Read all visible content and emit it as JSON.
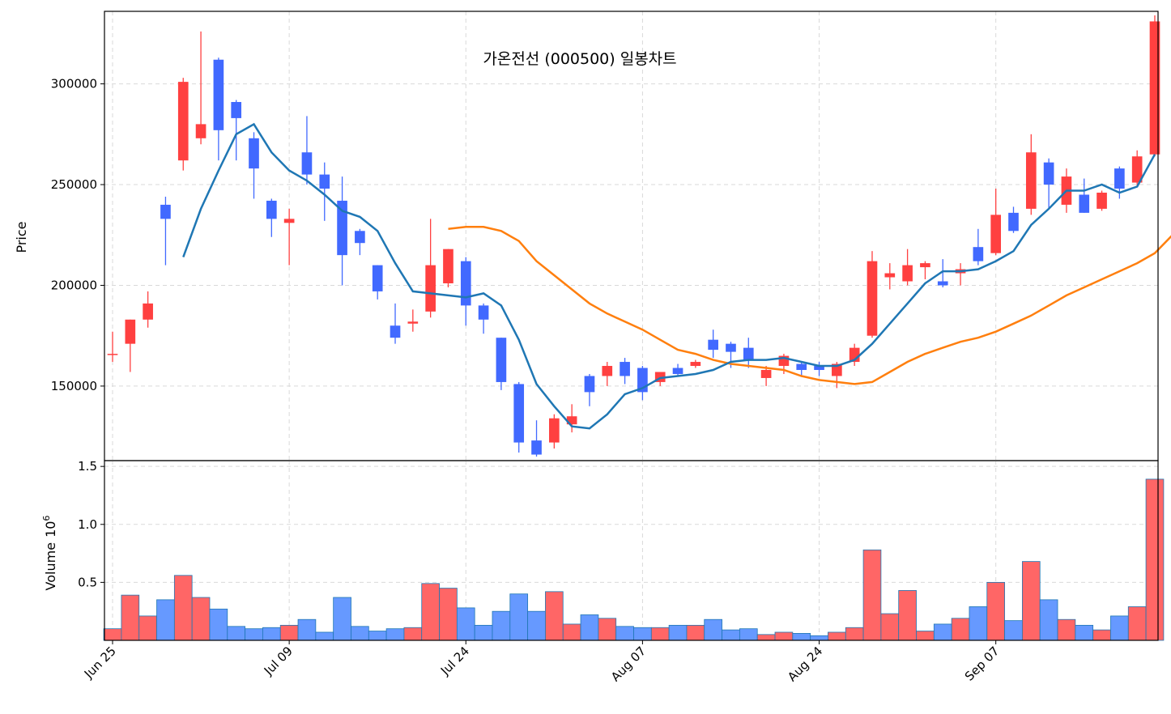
{
  "chart_data": [
    {
      "type": "candlestick",
      "title": "가온전선 (000500) 일봉차트",
      "ylabel": "Price",
      "ylim": [
        113000,
        336000
      ],
      "yticks": [
        150000,
        200000,
        250000,
        300000
      ],
      "xticks": [
        {
          "label": "Jun 25",
          "index": 0
        },
        {
          "label": "Jul 09",
          "index": 10
        },
        {
          "label": "Jul 24",
          "index": 20
        },
        {
          "label": "Aug 07",
          "index": 30
        },
        {
          "label": "Aug 24",
          "index": 40
        },
        {
          "label": "Sep 07",
          "index": 50
        }
      ],
      "grid": true,
      "colors": {
        "up": "#ff4040",
        "down": "#4169ff",
        "ma_short": "#1f77b4",
        "ma_long": "#ff7f0e"
      },
      "ohlc": [
        [
          166000,
          177000,
          162000,
          166000
        ],
        [
          171000,
          183000,
          157000,
          183000
        ],
        [
          183000,
          197000,
          179000,
          191000
        ],
        [
          240000,
          244000,
          210000,
          233000
        ],
        [
          262000,
          303000,
          257000,
          301000
        ],
        [
          273000,
          326000,
          270000,
          280000
        ],
        [
          312000,
          313000,
          262000,
          277000
        ],
        [
          291000,
          292000,
          262000,
          283000
        ],
        [
          273000,
          276000,
          243000,
          258000
        ],
        [
          242000,
          243000,
          224000,
          233000
        ],
        [
          231000,
          238000,
          210000,
          233000
        ],
        [
          266000,
          284000,
          250000,
          255000
        ],
        [
          255000,
          261000,
          232000,
          248000
        ],
        [
          242000,
          254000,
          200000,
          215000
        ],
        [
          227000,
          228000,
          215000,
          221000
        ],
        [
          210000,
          210000,
          193000,
          197000
        ],
        [
          180000,
          191000,
          171000,
          174000
        ],
        [
          181000,
          188000,
          177000,
          182000
        ],
        [
          187000,
          233000,
          184000,
          210000
        ],
        [
          201000,
          218000,
          199000,
          218000
        ],
        [
          212000,
          214000,
          180000,
          190000
        ],
        [
          190000,
          191000,
          176000,
          183000
        ],
        [
          174000,
          174000,
          148000,
          152000
        ],
        [
          151000,
          152000,
          117000,
          122000
        ],
        [
          123000,
          133000,
          115000,
          116000
        ],
        [
          122000,
          136000,
          119000,
          134000
        ],
        [
          131000,
          141000,
          127000,
          135000
        ],
        [
          155000,
          156000,
          140000,
          147000
        ],
        [
          155000,
          162000,
          150000,
          160000
        ],
        [
          162000,
          164000,
          151000,
          155000
        ],
        [
          159000,
          160000,
          143000,
          147000
        ],
        [
          152000,
          157000,
          150000,
          157000
        ],
        [
          159000,
          161000,
          155000,
          156000
        ],
        [
          160000,
          163000,
          159000,
          162000
        ],
        [
          173000,
          178000,
          164000,
          168000
        ],
        [
          171000,
          172000,
          159000,
          167000
        ],
        [
          169000,
          174000,
          159000,
          163000
        ],
        [
          154000,
          160000,
          150000,
          158000
        ],
        [
          160000,
          166000,
          156000,
          165000
        ],
        [
          161000,
          162000,
          155000,
          158000
        ],
        [
          160000,
          162000,
          155000,
          158000
        ],
        [
          155000,
          162000,
          149000,
          161000
        ],
        [
          162000,
          171000,
          160000,
          169000
        ],
        [
          175000,
          217000,
          174000,
          212000
        ],
        [
          204000,
          211000,
          198000,
          206000
        ],
        [
          202000,
          218000,
          200000,
          210000
        ],
        [
          209000,
          212000,
          203000,
          211000
        ],
        [
          202000,
          213000,
          199000,
          200000
        ],
        [
          206000,
          211000,
          200000,
          208000
        ],
        [
          219000,
          228000,
          210000,
          212000
        ],
        [
          216000,
          248000,
          215000,
          235000
        ],
        [
          236000,
          239000,
          226000,
          227000
        ],
        [
          238000,
          275000,
          235000,
          266000
        ],
        [
          261000,
          263000,
          238000,
          250000
        ],
        [
          240000,
          258000,
          236000,
          254000
        ],
        [
          245000,
          253000,
          236000,
          236000
        ],
        [
          238000,
          247000,
          237000,
          246000
        ],
        [
          258000,
          259000,
          243000,
          248000
        ],
        [
          251000,
          267000,
          249000,
          264000
        ],
        [
          265000,
          334000,
          264000,
          331000
        ]
      ],
      "ma_short": {
        "start_index": 4,
        "values": [
          214000,
          238000,
          257000,
          275000,
          280000,
          266000,
          257000,
          252000,
          245000,
          237000,
          234000,
          227000,
          211000,
          197000,
          196000,
          195000,
          194000,
          196000,
          190000,
          173000,
          151000,
          140000,
          130000,
          129000,
          136000,
          146000,
          149000,
          154000,
          155000,
          156000,
          158000,
          162000,
          163000,
          163000,
          164000,
          162000,
          160000,
          160000,
          163000,
          171000,
          181000,
          191000,
          201000,
          207000,
          207000,
          208000,
          212000,
          217000,
          230000,
          238000,
          247000,
          247000,
          250000,
          246000,
          249000,
          265000
        ]
      },
      "ma_long": {
        "start_index": 19,
        "values": [
          228000,
          229000,
          229000,
          227000,
          222000,
          212000,
          205000,
          198000,
          191000,
          186000,
          182000,
          178000,
          173000,
          168000,
          166000,
          163000,
          161000,
          160000,
          159000,
          158000,
          155000,
          153000,
          152000,
          151000,
          152000,
          157000,
          162000,
          166000,
          169000,
          172000,
          174000,
          177000,
          181000,
          185000,
          190000,
          195000,
          199000,
          203000,
          207000,
          211000,
          216000,
          225000
        ]
      }
    },
    {
      "type": "bar",
      "ylabel": "Volume",
      "exponent_label": "10",
      "exponent": "6",
      "ylim": [
        0,
        1.55
      ],
      "yticks": [
        0.5,
        1.0,
        1.5
      ],
      "grid": true,
      "colors": {
        "up": "#ff6666",
        "down": "#6699ff",
        "edge": "#1f77b4"
      },
      "values": [
        0.1,
        0.39,
        0.21,
        0.35,
        0.56,
        0.37,
        0.27,
        0.12,
        0.1,
        0.11,
        0.13,
        0.18,
        0.07,
        0.37,
        0.12,
        0.08,
        0.1,
        0.11,
        0.49,
        0.45,
        0.28,
        0.13,
        0.25,
        0.4,
        0.25,
        0.42,
        0.14,
        0.22,
        0.19,
        0.12,
        0.11,
        0.11,
        0.13,
        0.13,
        0.18,
        0.09,
        0.1,
        0.05,
        0.07,
        0.06,
        0.04,
        0.07,
        0.11,
        0.78,
        0.23,
        0.43,
        0.08,
        0.14,
        0.19,
        0.29,
        0.5,
        0.17,
        0.68,
        0.35,
        0.18,
        0.13,
        0.09,
        0.21,
        0.29,
        1.39
      ]
    }
  ]
}
